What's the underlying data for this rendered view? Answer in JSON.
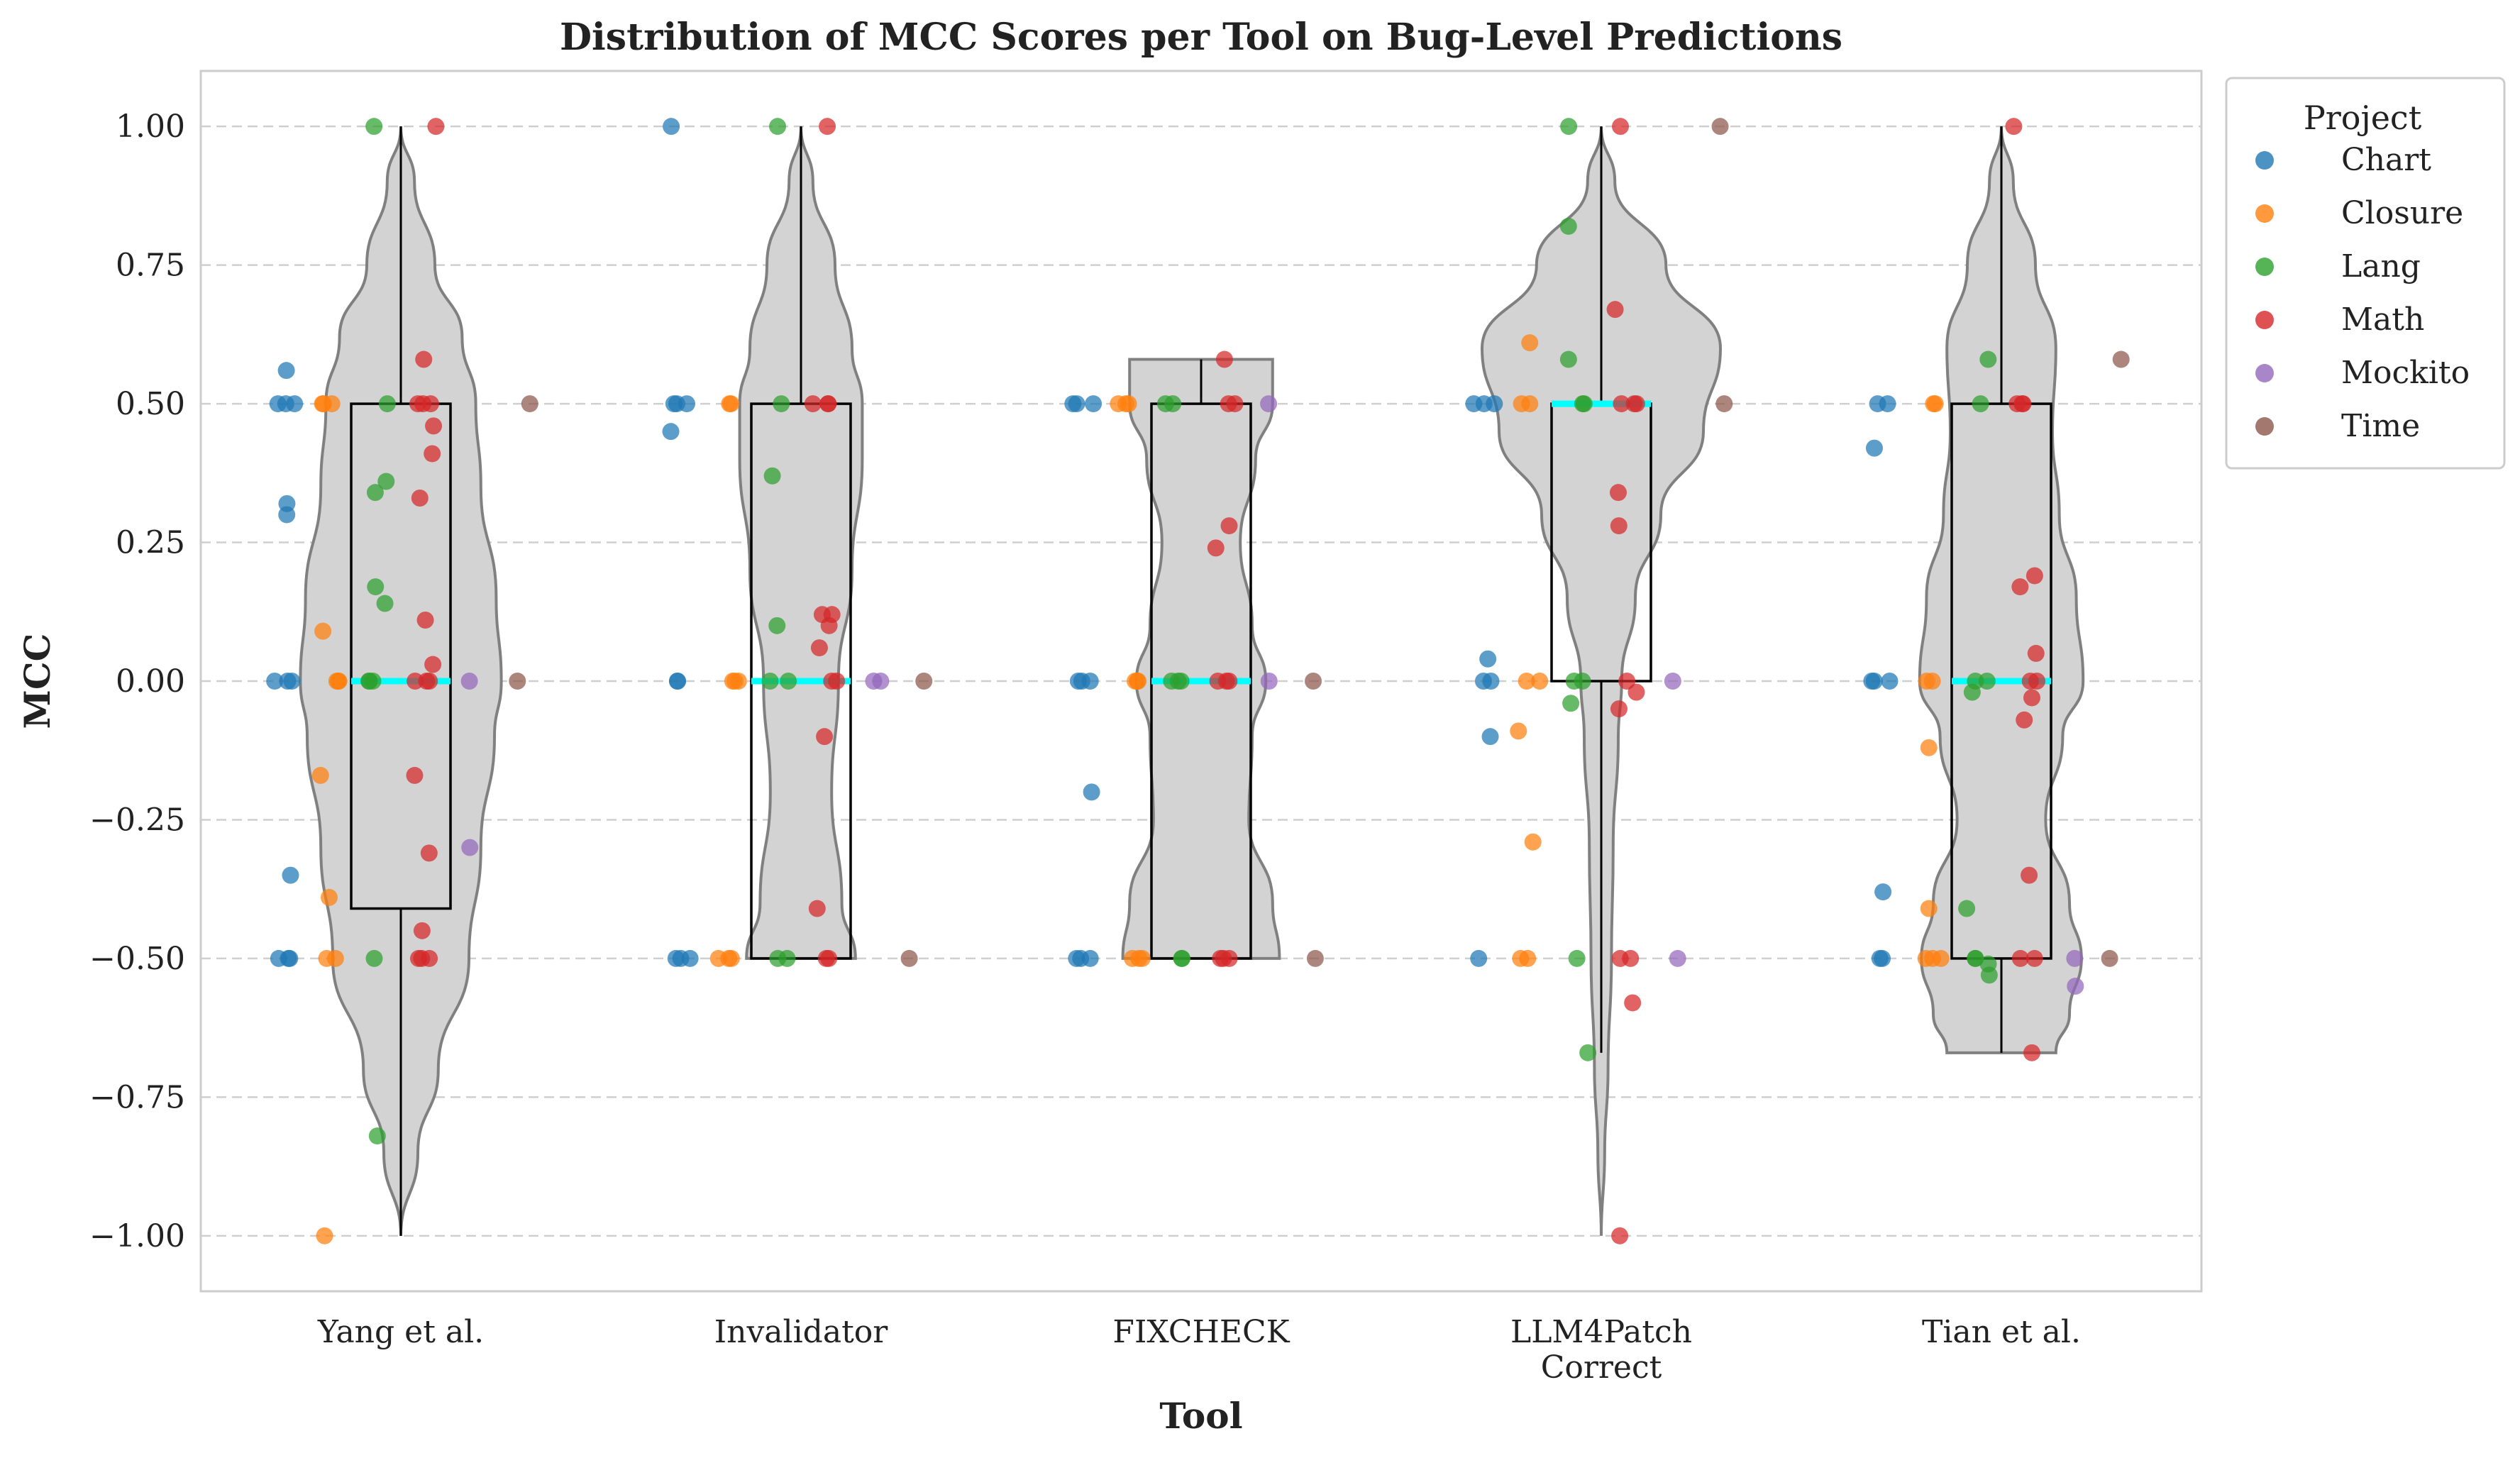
{
  "chart_data": {
    "type": "violin",
    "title": "Distribution of MCC Scores per Tool on Bug-Level Predictions",
    "xlabel": "Tool",
    "ylabel": "MCC",
    "ylim": [
      -1.1,
      1.1
    ],
    "yticks": [
      -1.0,
      -0.75,
      -0.5,
      -0.25,
      0.0,
      0.25,
      0.5,
      0.75,
      1.0
    ],
    "ytick_labels": [
      "−1.00",
      "−0.75",
      "−0.50",
      "−0.25",
      "0.00",
      "0.25",
      "0.50",
      "0.75",
      "1.00"
    ],
    "grid": "y-dashed",
    "legend": {
      "title": "Project",
      "placement": "outside-top-right",
      "entries": [
        {
          "name": "Chart",
          "color": "#1f77b4"
        },
        {
          "name": "Closure",
          "color": "#ff7f0e"
        },
        {
          "name": "Lang",
          "color": "#2ca02c"
        },
        {
          "name": "Math",
          "color": "#d62728"
        },
        {
          "name": "Mockito",
          "color": "#9467bd"
        },
        {
          "name": "Time",
          "color": "#8c564b"
        }
      ]
    },
    "colors": {
      "violin_fill": "#d3d3d3",
      "violin_edge": "#808080",
      "box_edge": "#000000",
      "median": "#00ffff"
    },
    "categories": [
      {
        "label": "Yang et al.",
        "box": {
          "q1": -0.41,
          "median": 0.0,
          "q3": 0.5,
          "whisker_low": -1.0,
          "whisker_high": 1.0
        },
        "violin": {
          "y": [
            -1.0,
            -0.85,
            -0.7,
            -0.5,
            -0.3,
            -0.1,
            0.0,
            0.15,
            0.35,
            0.5,
            0.62,
            0.75,
            0.9,
            1.0
          ],
          "w": [
            0.0,
            0.1,
            0.22,
            0.4,
            0.47,
            0.55,
            0.59,
            0.56,
            0.47,
            0.44,
            0.36,
            0.2,
            0.08,
            0.0
          ]
        },
        "points": [
          {
            "project": "Chart",
            "y": [
              0.56,
              0.5,
              0.5,
              0.5,
              0.32,
              0.3,
              0.0,
              0.0,
              0.0,
              -0.35,
              -0.5,
              -0.5,
              -0.5
            ]
          },
          {
            "project": "Closure",
            "y": [
              0.5,
              0.5,
              0.5,
              0.09,
              0.0,
              0.0,
              0.0,
              -0.17,
              -0.39,
              -0.5,
              -0.5,
              -1.0
            ]
          },
          {
            "project": "Lang",
            "y": [
              1.0,
              0.5,
              0.36,
              0.34,
              0.17,
              0.14,
              0.0,
              0.0,
              0.0,
              -0.5,
              -0.82
            ]
          },
          {
            "project": "Math",
            "y": [
              1.0,
              0.58,
              0.5,
              0.5,
              0.5,
              0.46,
              0.41,
              0.33,
              0.11,
              0.03,
              0.0,
              0.0,
              0.0,
              -0.17,
              -0.31,
              -0.45,
              -0.5,
              -0.5,
              -0.5
            ]
          },
          {
            "project": "Mockito",
            "y": [
              0.0,
              -0.3
            ]
          },
          {
            "project": "Time",
            "y": [
              0.5,
              0.0
            ]
          }
        ]
      },
      {
        "label": "Invalidator",
        "box": {
          "q1": -0.5,
          "median": 0.0,
          "q3": 0.5,
          "whisker_low": -0.5,
          "whisker_high": 1.0
        },
        "violin": {
          "y": [
            -0.5,
            -0.4,
            -0.2,
            0.0,
            0.2,
            0.4,
            0.5,
            0.6,
            0.75,
            0.9,
            1.0
          ],
          "w": [
            0.32,
            0.24,
            0.18,
            0.22,
            0.3,
            0.36,
            0.36,
            0.3,
            0.2,
            0.07,
            0.0
          ]
        },
        "points": [
          {
            "project": "Chart",
            "y": [
              1.0,
              0.5,
              0.5,
              0.5,
              0.45,
              0.0,
              0.0,
              -0.5,
              -0.5,
              -0.5
            ]
          },
          {
            "project": "Closure",
            "y": [
              0.5,
              0.5,
              0.0,
              0.0,
              0.0,
              -0.5,
              -0.5,
              -0.5
            ]
          },
          {
            "project": "Lang",
            "y": [
              1.0,
              0.5,
              0.37,
              0.1,
              0.0,
              0.0,
              -0.5,
              -0.5
            ]
          },
          {
            "project": "Math",
            "y": [
              1.0,
              0.5,
              0.5,
              0.5,
              0.12,
              0.12,
              0.1,
              0.06,
              0.0,
              0.0,
              -0.1,
              -0.41,
              -0.5,
              -0.5
            ]
          },
          {
            "project": "Mockito",
            "y": [
              0.0,
              0.0
            ]
          },
          {
            "project": "Time",
            "y": [
              0.0,
              -0.5
            ]
          }
        ]
      },
      {
        "label": "FIXCHECK",
        "box": {
          "q1": -0.5,
          "median": 0.0,
          "q3": 0.5,
          "whisker_low": -0.5,
          "whisker_high": 0.58
        },
        "violin": {
          "y": [
            -0.5,
            -0.4,
            -0.25,
            -0.1,
            0.0,
            0.1,
            0.25,
            0.4,
            0.5,
            0.58
          ],
          "w": [
            0.46,
            0.42,
            0.28,
            0.3,
            0.38,
            0.3,
            0.23,
            0.32,
            0.42,
            0.42
          ]
        },
        "points": [
          {
            "project": "Chart",
            "y": [
              0.5,
              0.5,
              0.5,
              0.0,
              0.0,
              0.0,
              -0.2,
              -0.5,
              -0.5,
              -0.5
            ]
          },
          {
            "project": "Closure",
            "y": [
              0.5,
              0.5,
              0.5,
              0.0,
              0.0,
              0.0,
              -0.5,
              -0.5,
              -0.5
            ]
          },
          {
            "project": "Lang",
            "y": [
              0.5,
              0.5,
              0.0,
              0.0,
              0.0,
              -0.5,
              -0.5
            ]
          },
          {
            "project": "Math",
            "y": [
              0.58,
              0.5,
              0.5,
              0.28,
              0.24,
              0.0,
              0.0,
              0.0,
              -0.5,
              -0.5,
              -0.5
            ]
          },
          {
            "project": "Mockito",
            "y": [
              0.5,
              0.0
            ]
          },
          {
            "project": "Time",
            "y": [
              0.0,
              -0.5
            ]
          }
        ]
      },
      {
        "label": "LLM4Patch\nCorrect",
        "box": {
          "q1": 0.0,
          "median": 0.5,
          "q3": 0.5,
          "whisker_low": -0.67,
          "whisker_high": 1.0
        },
        "violin": {
          "y": [
            -1.0,
            -0.85,
            -0.7,
            -0.5,
            -0.3,
            -0.1,
            0.0,
            0.15,
            0.3,
            0.45,
            0.6,
            0.75,
            0.9,
            1.0
          ],
          "w": [
            0.0,
            0.02,
            0.04,
            0.06,
            0.07,
            0.1,
            0.12,
            0.2,
            0.35,
            0.6,
            0.7,
            0.38,
            0.08,
            0.0
          ]
        },
        "points": [
          {
            "project": "Chart",
            "y": [
              0.5,
              0.5,
              0.5,
              0.04,
              0.0,
              0.0,
              -0.1,
              -0.5
            ]
          },
          {
            "project": "Closure",
            "y": [
              0.61,
              0.5,
              0.5,
              0.0,
              0.0,
              -0.09,
              -0.29,
              -0.5,
              -0.5
            ]
          },
          {
            "project": "Lang",
            "y": [
              1.0,
              0.82,
              0.58,
              0.5,
              0.5,
              0.0,
              0.0,
              -0.04,
              -0.5,
              -0.67
            ]
          },
          {
            "project": "Math",
            "y": [
              1.0,
              0.67,
              0.5,
              0.5,
              0.5,
              0.34,
              0.28,
              0.0,
              -0.02,
              -0.05,
              -0.5,
              -0.5,
              -0.58,
              -1.0
            ]
          },
          {
            "project": "Mockito",
            "y": [
              0.0,
              -0.5
            ]
          },
          {
            "project": "Time",
            "y": [
              1.0,
              0.5
            ]
          }
        ]
      },
      {
        "label": "Tian et al.",
        "box": {
          "q1": -0.5,
          "median": 0.0,
          "q3": 0.5,
          "whisker_low": -0.67,
          "whisker_high": 1.0
        },
        "violin": {
          "y": [
            -0.67,
            -0.6,
            -0.5,
            -0.4,
            -0.25,
            -0.1,
            0.0,
            0.15,
            0.3,
            0.45,
            0.6,
            0.75,
            0.9,
            1.0
          ],
          "w": [
            0.32,
            0.4,
            0.47,
            0.4,
            0.26,
            0.36,
            0.48,
            0.44,
            0.34,
            0.3,
            0.32,
            0.2,
            0.07,
            0.0
          ]
        },
        "points": [
          {
            "project": "Chart",
            "y": [
              0.5,
              0.5,
              0.42,
              0.0,
              0.0,
              0.0,
              -0.38,
              -0.5,
              -0.5
            ]
          },
          {
            "project": "Closure",
            "y": [
              0.5,
              0.5,
              0.0,
              0.0,
              -0.12,
              -0.41,
              -0.5,
              -0.5,
              -0.5
            ]
          },
          {
            "project": "Lang",
            "y": [
              0.58,
              0.5,
              0.0,
              0.0,
              -0.02,
              -0.41,
              -0.5,
              -0.5,
              -0.51,
              -0.53
            ]
          },
          {
            "project": "Math",
            "y": [
              1.0,
              0.5,
              0.5,
              0.5,
              0.19,
              0.17,
              0.05,
              0.0,
              0.0,
              -0.03,
              -0.07,
              -0.35,
              -0.5,
              -0.5,
              -0.67
            ]
          },
          {
            "project": "Mockito",
            "y": [
              -0.5,
              -0.55
            ]
          },
          {
            "project": "Time",
            "y": [
              0.58,
              -0.5
            ]
          }
        ]
      }
    ]
  }
}
